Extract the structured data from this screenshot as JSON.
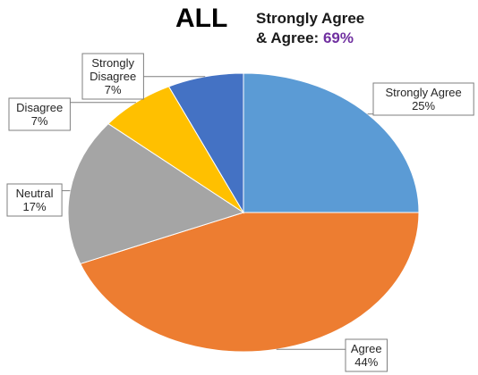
{
  "header": {
    "title": "ALL",
    "subtitle_line1": "Strongly Agree",
    "subtitle_line2_prefix": "& Agree: ",
    "subtitle_highlight": "69%",
    "highlight_color": "#7030a0"
  },
  "chart_data": {
    "type": "pie",
    "title": "ALL",
    "start_angle_deg": 0,
    "direction": "clockwise",
    "legend": "none",
    "slices": [
      {
        "label": "Strongly Agree",
        "value": 25,
        "value_text": "25%",
        "color": "#5b9bd5"
      },
      {
        "label": "Agree",
        "value": 44,
        "value_text": "44%",
        "color": "#ed7d31"
      },
      {
        "label": "Neutral",
        "value": 17,
        "value_text": "17%",
        "color": "#a5a5a5"
      },
      {
        "label": "Disagree",
        "value": 7,
        "value_text": "7%",
        "color": "#ffc000"
      },
      {
        "label": "Strongly Disagree",
        "value": 7,
        "value_text": "7%",
        "color": "#4472c4"
      }
    ]
  }
}
